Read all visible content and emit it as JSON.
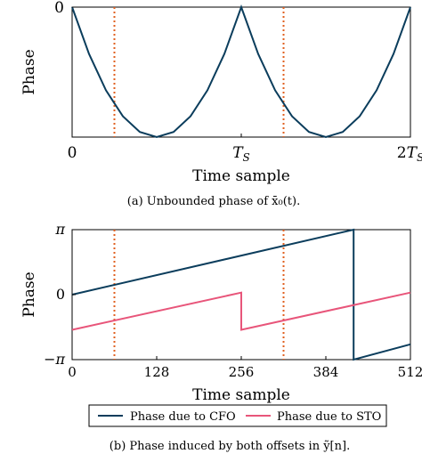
{
  "chart_data": [
    {
      "type": "line",
      "xlabel": "Time sample",
      "ylabel": "Phase",
      "caption": "(a) Unbounded phase of x̄₀(t).",
      "x_ticks": [
        "0",
        "T_S",
        "2T_S"
      ],
      "y_ticks": [
        "0"
      ],
      "xlim": [
        0,
        2
      ],
      "ylim": [
        -1,
        0
      ],
      "grid": false,
      "series": [
        {
          "values_desc": "parabolic phase",
          "x": [
            0,
            0.1,
            0.2,
            0.3,
            0.4,
            0.5,
            0.6,
            0.7,
            0.8,
            0.9,
            1.0,
            1.1,
            1.2,
            1.3,
            1.4,
            1.5,
            1.6,
            1.7,
            1.8,
            1.9,
            2.0
          ],
          "y": [
            0,
            -0.36,
            -0.64,
            -0.84,
            -0.96,
            -1.0,
            -0.96,
            -0.84,
            -0.64,
            -0.36,
            0,
            -0.36,
            -0.64,
            -0.84,
            -0.96,
            -1.0,
            -0.96,
            -0.84,
            -0.64,
            -0.36,
            0
          ],
          "color": "#0b3d5c",
          "style": "solid"
        }
      ],
      "markers": [
        {
          "x": 0.25,
          "color": "#e06020",
          "style": "dotted"
        },
        {
          "x": 1.25,
          "color": "#e06020",
          "style": "dotted"
        }
      ]
    },
    {
      "type": "line",
      "xlabel": "Time sample",
      "ylabel": "Phase",
      "caption": "(b) Phase induced by both offsets in ỹ[n].",
      "x_ticks": [
        "0",
        "128",
        "256",
        "384",
        "512"
      ],
      "x_tick_values": [
        0,
        128,
        256,
        384,
        512
      ],
      "y_ticks": [
        "−π",
        "0",
        "π"
      ],
      "y_tick_values": [
        -3.1416,
        0,
        3.1416
      ],
      "xlim": [
        0,
        512
      ],
      "ylim": [
        -3.1416,
        3.1416
      ],
      "grid": false,
      "legend": "bottom",
      "series": [
        {
          "name": "Phase due to CFO",
          "color": "#0b3d5c",
          "x": [
            0,
            426,
            426,
            512
          ],
          "y": [
            0,
            3.1416,
            -3.1416,
            -2.4
          ]
        },
        {
          "name": "Phase due to STO",
          "color": "#e8557a",
          "x": [
            0,
            256,
            256,
            512
          ],
          "y": [
            -1.7,
            0.1,
            -1.7,
            0.1
          ]
        }
      ],
      "markers": [
        {
          "x": 64,
          "color": "#e06020",
          "style": "dotted"
        },
        {
          "x": 320,
          "color": "#e06020",
          "style": "dotted"
        }
      ]
    }
  ]
}
